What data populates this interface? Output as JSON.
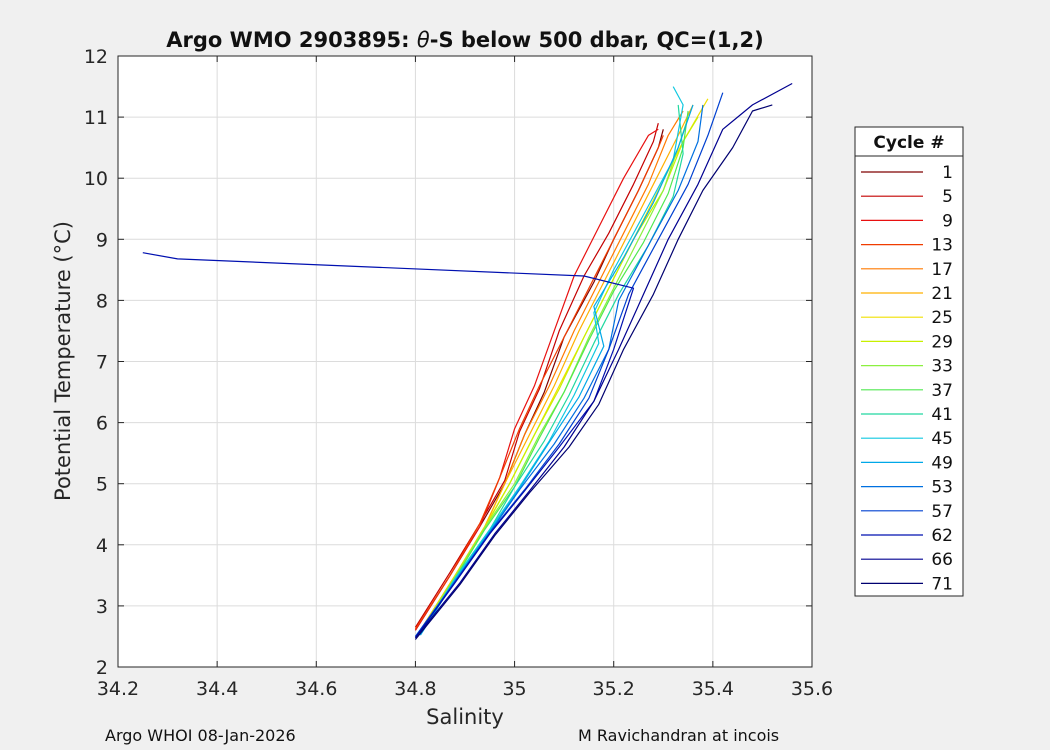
{
  "chart_data": {
    "type": "line",
    "title_prefix": "Argo WMO 2903895: ",
    "title_symbol": "θ",
    "title_suffix": "-S below 500 dbar,  QC=(1,2)",
    "xlabel": "Salinity",
    "ylabel": "Potential Temperature (°C)",
    "xlim": [
      34.2,
      35.6
    ],
    "ylim": [
      2,
      12
    ],
    "xticks": [
      "34.2",
      "34.4",
      "34.6",
      "34.8",
      "35",
      "35.2",
      "35.4",
      "35.6"
    ],
    "yticks": [
      "2",
      "3",
      "4",
      "5",
      "6",
      "7",
      "8",
      "9",
      "10",
      "11",
      "12"
    ],
    "grid": true,
    "legend": {
      "title": "Cycle #",
      "placement": "outside-right",
      "entries": [
        "1",
        "5",
        "9",
        "13",
        "17",
        "21",
        "25",
        "29",
        "33",
        "37",
        "41",
        "45",
        "49",
        "53",
        "57",
        "62",
        "66",
        "71"
      ],
      "colors": [
        "#7f0000",
        "#c40000",
        "#e81010",
        "#f03c00",
        "#ff7a00",
        "#ffb000",
        "#f0e000",
        "#c8f000",
        "#8cf040",
        "#50e850",
        "#20d8a0",
        "#10c8e0",
        "#00a8e8",
        "#0070e0",
        "#0040d0",
        "#0010b0",
        "#000090",
        "#000070"
      ]
    },
    "series": [
      {
        "cycle": "1",
        "color": "#7f0000",
        "points": [
          [
            34.8,
            2.6
          ],
          [
            34.87,
            3.5
          ],
          [
            34.93,
            4.3
          ],
          [
            34.98,
            5.0
          ],
          [
            35.02,
            5.8
          ],
          [
            35.06,
            6.5
          ],
          [
            35.1,
            7.4
          ],
          [
            35.16,
            8.3
          ],
          [
            35.2,
            9.0
          ],
          [
            35.25,
            9.8
          ],
          [
            35.29,
            10.5
          ],
          [
            35.3,
            10.8
          ]
        ]
      },
      {
        "cycle": "5",
        "color": "#c40000",
        "points": [
          [
            34.8,
            2.65
          ],
          [
            34.87,
            3.55
          ],
          [
            34.93,
            4.35
          ],
          [
            34.98,
            5.05
          ],
          [
            35.01,
            5.85
          ],
          [
            35.05,
            6.55
          ],
          [
            35.09,
            7.5
          ],
          [
            35.14,
            8.4
          ],
          [
            35.19,
            9.1
          ],
          [
            35.24,
            9.9
          ],
          [
            35.28,
            10.6
          ],
          [
            35.29,
            10.9
          ]
        ]
      },
      {
        "cycle": "9",
        "color": "#e81010",
        "points": [
          [
            34.8,
            2.6
          ],
          [
            34.87,
            3.5
          ],
          [
            34.93,
            4.3
          ],
          [
            34.97,
            5.1
          ],
          [
            35.0,
            5.9
          ],
          [
            35.04,
            6.6
          ],
          [
            35.08,
            7.5
          ],
          [
            35.12,
            8.4
          ],
          [
            35.17,
            9.2
          ],
          [
            35.22,
            10.0
          ],
          [
            35.27,
            10.7
          ],
          [
            35.29,
            10.8
          ]
        ]
      },
      {
        "cycle": "13",
        "color": "#f03c00",
        "points": [
          [
            34.8,
            2.62
          ],
          [
            34.87,
            3.5
          ],
          [
            34.93,
            4.35
          ],
          [
            34.97,
            5.1
          ],
          [
            35.01,
            5.9
          ],
          [
            35.05,
            6.6
          ],
          [
            35.1,
            7.4
          ],
          [
            35.15,
            8.2
          ],
          [
            35.2,
            9.0
          ],
          [
            35.25,
            9.8
          ],
          [
            35.29,
            10.5
          ],
          [
            35.3,
            10.7
          ]
        ]
      },
      {
        "cycle": "17",
        "color": "#ff7a00",
        "points": [
          [
            34.81,
            2.6
          ],
          [
            34.88,
            3.5
          ],
          [
            34.94,
            4.3
          ],
          [
            34.98,
            5.0
          ],
          [
            35.02,
            5.8
          ],
          [
            35.07,
            6.6
          ],
          [
            35.12,
            7.5
          ],
          [
            35.17,
            8.3
          ],
          [
            35.22,
            9.1
          ],
          [
            35.27,
            9.9
          ],
          [
            35.31,
            10.7
          ],
          [
            35.34,
            11.1
          ]
        ]
      },
      {
        "cycle": "21",
        "color": "#ffb000",
        "points": [
          [
            34.81,
            2.6
          ],
          [
            34.88,
            3.5
          ],
          [
            34.94,
            4.3
          ],
          [
            34.98,
            5.0
          ],
          [
            35.03,
            5.8
          ],
          [
            35.08,
            6.6
          ],
          [
            35.13,
            7.5
          ],
          [
            35.18,
            8.3
          ],
          [
            35.23,
            9.1
          ],
          [
            35.28,
            9.9
          ],
          [
            35.33,
            10.7
          ],
          [
            35.36,
            11.2
          ]
        ]
      },
      {
        "cycle": "25",
        "color": "#f0e000",
        "points": [
          [
            34.81,
            2.6
          ],
          [
            34.88,
            3.5
          ],
          [
            34.94,
            4.3
          ],
          [
            34.99,
            5.0
          ],
          [
            35.04,
            5.8
          ],
          [
            35.09,
            6.6
          ],
          [
            35.14,
            7.4
          ],
          [
            35.19,
            8.2
          ],
          [
            35.24,
            9.0
          ],
          [
            35.29,
            9.8
          ],
          [
            35.34,
            10.6
          ],
          [
            35.39,
            11.3
          ]
        ]
      },
      {
        "cycle": "29",
        "color": "#c8f000",
        "points": [
          [
            34.81,
            2.58
          ],
          [
            34.88,
            3.48
          ],
          [
            34.94,
            4.28
          ],
          [
            34.99,
            5.0
          ],
          [
            35.04,
            5.8
          ],
          [
            35.09,
            6.55
          ],
          [
            35.14,
            7.4
          ],
          [
            35.19,
            8.2
          ],
          [
            35.24,
            9.0
          ],
          [
            35.3,
            9.8
          ],
          [
            35.34,
            10.6
          ],
          [
            35.37,
            11.0
          ]
        ]
      },
      {
        "cycle": "33",
        "color": "#8cf040",
        "points": [
          [
            34.81,
            2.58
          ],
          [
            34.88,
            3.48
          ],
          [
            34.94,
            4.28
          ],
          [
            35.0,
            5.0
          ],
          [
            35.05,
            5.8
          ],
          [
            35.1,
            6.5
          ],
          [
            35.15,
            7.4
          ],
          [
            35.2,
            8.2
          ],
          [
            35.25,
            9.0
          ],
          [
            35.3,
            9.8
          ],
          [
            35.33,
            10.5
          ],
          [
            35.35,
            11.0
          ]
        ]
      },
      {
        "cycle": "37",
        "color": "#50e850",
        "points": [
          [
            34.81,
            2.55
          ],
          [
            34.88,
            3.45
          ],
          [
            34.94,
            4.25
          ],
          [
            35.0,
            4.95
          ],
          [
            35.05,
            5.75
          ],
          [
            35.1,
            6.5
          ],
          [
            35.15,
            7.35
          ],
          [
            35.2,
            8.15
          ],
          [
            35.26,
            8.95
          ],
          [
            35.31,
            9.75
          ],
          [
            35.34,
            10.5
          ],
          [
            35.35,
            11.1
          ]
        ]
      },
      {
        "cycle": "41",
        "color": "#20d8a0",
        "points": [
          [
            34.81,
            2.55
          ],
          [
            34.88,
            3.45
          ],
          [
            34.95,
            4.25
          ],
          [
            35.0,
            4.95
          ],
          [
            35.06,
            5.7
          ],
          [
            35.11,
            6.45
          ],
          [
            35.16,
            7.3
          ],
          [
            35.21,
            8.1
          ],
          [
            35.27,
            8.9
          ],
          [
            35.32,
            9.7
          ],
          [
            35.34,
            10.4
          ],
          [
            35.33,
            11.2
          ]
        ]
      },
      {
        "cycle": "45",
        "color": "#10c8e0",
        "points": [
          [
            34.81,
            2.55
          ],
          [
            34.88,
            3.45
          ],
          [
            34.95,
            4.25
          ],
          [
            35.01,
            4.95
          ],
          [
            35.07,
            5.7
          ],
          [
            35.12,
            6.45
          ],
          [
            35.17,
            7.3
          ],
          [
            35.16,
            7.8
          ],
          [
            35.2,
            8.5
          ],
          [
            35.26,
            9.4
          ],
          [
            35.32,
            10.3
          ],
          [
            35.34,
            11.2
          ],
          [
            35.32,
            11.5
          ]
        ]
      },
      {
        "cycle": "49",
        "color": "#00a8e8",
        "points": [
          [
            34.81,
            2.52
          ],
          [
            34.88,
            3.42
          ],
          [
            34.95,
            4.22
          ],
          [
            35.01,
            4.92
          ],
          [
            35.07,
            5.68
          ],
          [
            35.13,
            6.42
          ],
          [
            35.18,
            7.25
          ],
          [
            35.16,
            7.9
          ],
          [
            35.22,
            8.7
          ],
          [
            35.28,
            9.6
          ],
          [
            35.33,
            10.5
          ],
          [
            35.36,
            11.2
          ]
        ]
      },
      {
        "cycle": "53",
        "color": "#0070e0",
        "points": [
          [
            34.8,
            2.5
          ],
          [
            34.88,
            3.4
          ],
          [
            34.95,
            4.2
          ],
          [
            35.01,
            4.9
          ],
          [
            35.08,
            5.65
          ],
          [
            35.14,
            6.4
          ],
          [
            35.19,
            7.2
          ],
          [
            35.21,
            8.0
          ],
          [
            35.27,
            8.9
          ],
          [
            35.33,
            9.8
          ],
          [
            35.37,
            10.6
          ],
          [
            35.38,
            11.2
          ]
        ]
      },
      {
        "cycle": "57",
        "color": "#0040d0",
        "points": [
          [
            34.8,
            2.5
          ],
          [
            34.88,
            3.4
          ],
          [
            34.95,
            4.2
          ],
          [
            35.02,
            4.9
          ],
          [
            35.09,
            5.65
          ],
          [
            35.15,
            6.4
          ],
          [
            35.19,
            7.2
          ],
          [
            35.23,
            8.1
          ],
          [
            35.29,
            9.0
          ],
          [
            35.35,
            9.9
          ],
          [
            35.39,
            10.7
          ],
          [
            35.42,
            11.4
          ]
        ]
      },
      {
        "cycle": "62",
        "color": "#0010b0",
        "points": [
          [
            34.8,
            2.48
          ],
          [
            34.88,
            3.38
          ],
          [
            34.95,
            4.18
          ],
          [
            35.02,
            4.88
          ],
          [
            35.09,
            5.6
          ],
          [
            35.16,
            6.35
          ],
          [
            35.2,
            7.2
          ],
          [
            35.24,
            8.2
          ],
          [
            35.14,
            8.4
          ],
          [
            34.32,
            8.68
          ],
          [
            34.25,
            8.78
          ]
        ]
      },
      {
        "cycle": "66",
        "color": "#000090",
        "points": [
          [
            34.8,
            2.48
          ],
          [
            34.89,
            3.38
          ],
          [
            34.96,
            4.18
          ],
          [
            35.03,
            4.88
          ],
          [
            35.1,
            5.6
          ],
          [
            35.16,
            6.35
          ],
          [
            35.21,
            7.2
          ],
          [
            35.26,
            8.1
          ],
          [
            35.31,
            9.0
          ],
          [
            35.37,
            9.9
          ],
          [
            35.42,
            10.8
          ],
          [
            35.48,
            11.2
          ],
          [
            35.56,
            11.55
          ]
        ]
      },
      {
        "cycle": "71",
        "color": "#000070",
        "points": [
          [
            34.8,
            2.45
          ],
          [
            34.89,
            3.35
          ],
          [
            34.96,
            4.15
          ],
          [
            35.03,
            4.85
          ],
          [
            35.11,
            5.6
          ],
          [
            35.17,
            6.3
          ],
          [
            35.22,
            7.2
          ],
          [
            35.28,
            8.1
          ],
          [
            35.33,
            9.0
          ],
          [
            35.38,
            9.8
          ],
          [
            35.44,
            10.5
          ],
          [
            35.48,
            11.1
          ],
          [
            35.52,
            11.2
          ]
        ]
      }
    ]
  },
  "footer": {
    "left": "Argo WHOI 08-Jan-2026",
    "right": "M Ravichandran at incois"
  }
}
